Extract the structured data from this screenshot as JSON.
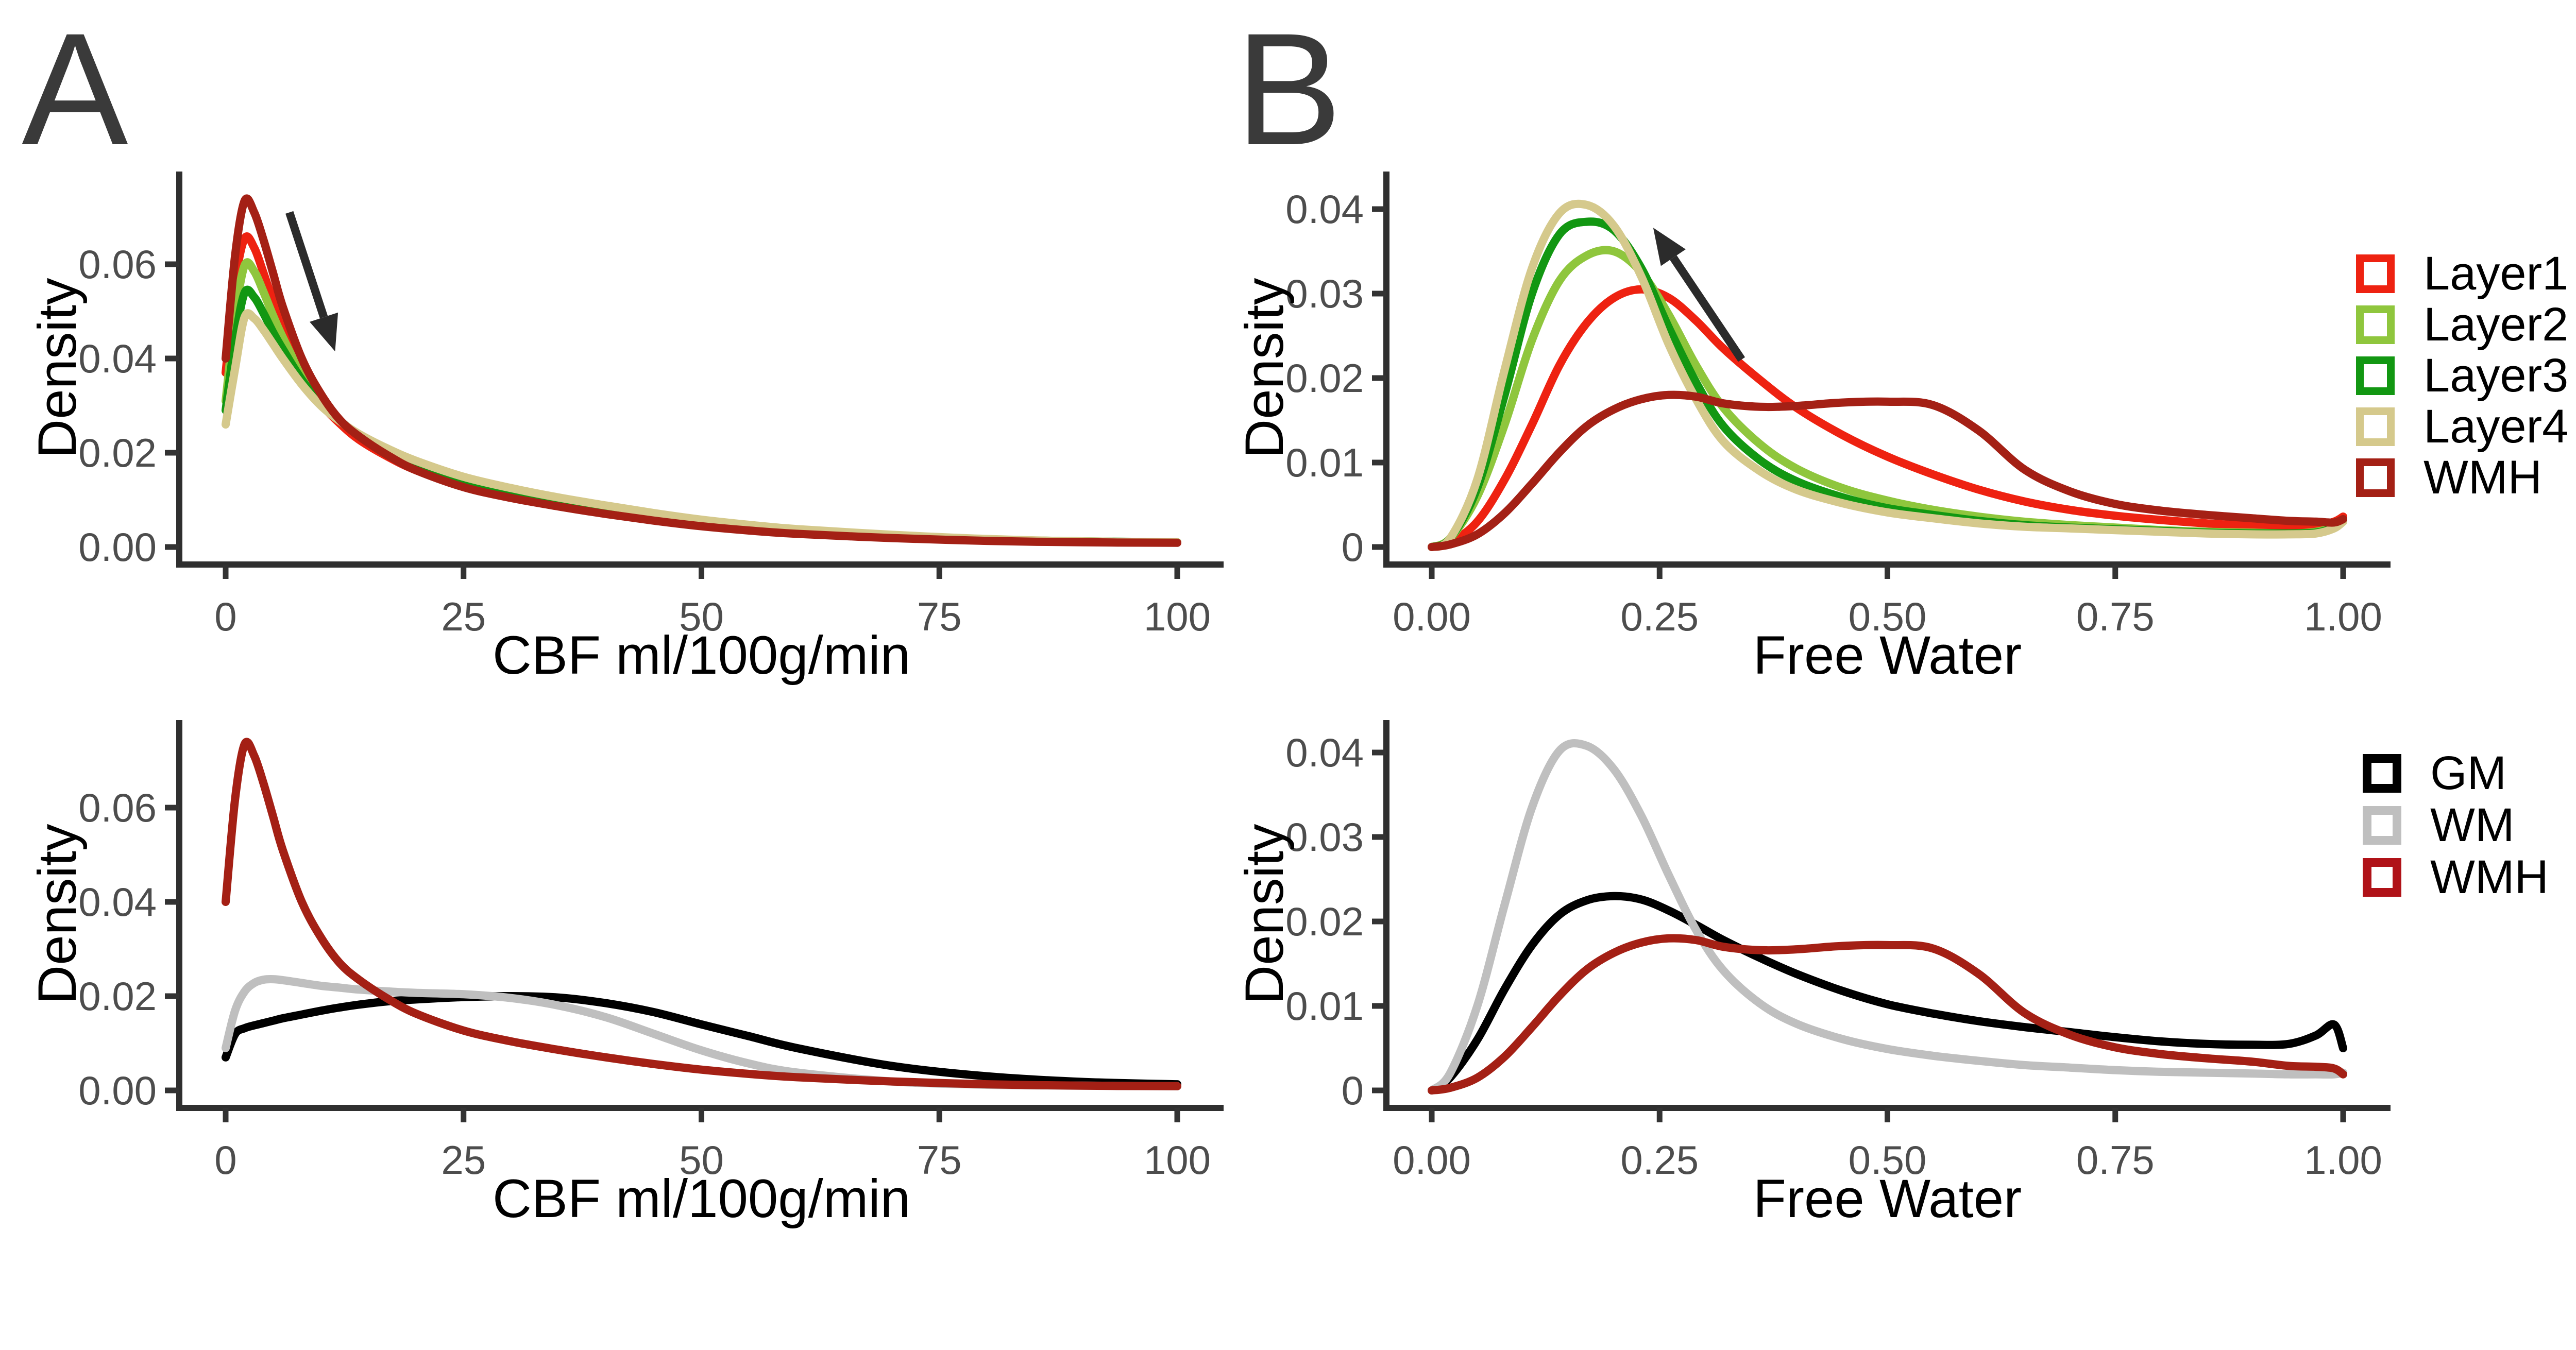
{
  "page": {
    "background": "#FFFFFF"
  },
  "panel_labels": [
    {
      "id": "A",
      "text": "A"
    },
    {
      "id": "B",
      "text": "B"
    }
  ],
  "colors": {
    "axis_line": "#2F2F2F",
    "tick": "#333333",
    "tick_label": "#4D4D4D",
    "axis_title": "#000000",
    "arrow": "#2B2B2B",
    "layer1": "#EE2211",
    "layer2": "#8FC63D",
    "layer3": "#129712",
    "layer4": "#D5C98C",
    "wmh": "#A42015",
    "gm": "#000000",
    "wm": "#BFBFBF"
  },
  "legends": [
    {
      "id": "layers",
      "items": [
        {
          "label": "Layer1",
          "color": "#EE2211"
        },
        {
          "label": "Layer2",
          "color": "#8FC63D"
        },
        {
          "label": "Layer3",
          "color": "#129712"
        },
        {
          "label": "Layer4",
          "color": "#D5C98C"
        },
        {
          "label": "WMH",
          "color": "#A42015"
        }
      ]
    },
    {
      "id": "tissues",
      "items": [
        {
          "label": "GM",
          "color": "#000000"
        },
        {
          "label": "WM",
          "color": "#BFBFBF"
        },
        {
          "label": "WMH",
          "color": "#B01218"
        }
      ]
    }
  ],
  "chart_data": [
    {
      "id": "cbf-layers",
      "panel": "A",
      "position": "top-left",
      "type": "line",
      "subtype": "density-kde",
      "xlabel": "CBF ml/100g/min",
      "ylabel": "Density",
      "xlim": [
        0,
        100
      ],
      "ylim": [
        0,
        0.0735
      ],
      "grid": false,
      "legend_position": "none",
      "xticks": [
        0,
        25,
        50,
        75,
        100
      ],
      "xtick_labels": [
        "0",
        "25",
        "50",
        "75",
        "100"
      ],
      "yticks": [
        0,
        0.02,
        0.04,
        0.06
      ],
      "ytick_labels": [
        "0.00",
        "0.02",
        "0.04",
        "0.06"
      ],
      "arrow": {
        "from": [
          6.7,
          0.071
        ],
        "to": [
          11.5,
          0.0415
        ],
        "meaning": "density peak decreases from WMH toward Layer4"
      },
      "x": [
        0,
        1,
        2,
        3,
        4,
        5,
        6,
        8,
        10,
        12,
        14,
        17,
        20,
        25,
        30,
        35,
        40,
        45,
        50,
        55,
        60,
        70,
        80,
        90,
        100
      ],
      "series": [
        {
          "name": "Layer1",
          "color": "#EE2211",
          "y": [
            0.037,
            0.056,
            0.0655,
            0.0635,
            0.058,
            0.052,
            0.046,
            0.037,
            0.0305,
            0.0262,
            0.0228,
            0.0192,
            0.0163,
            0.0128,
            0.0107,
            0.0089,
            0.0074,
            0.006,
            0.0048,
            0.0038,
            0.0031,
            0.0021,
            0.0014,
            0.0011,
            0.001
          ]
        },
        {
          "name": "Layer2",
          "color": "#8FC63D",
          "y": [
            0.031,
            0.049,
            0.0598,
            0.0585,
            0.054,
            0.049,
            0.0445,
            0.0365,
            0.0308,
            0.0268,
            0.0236,
            0.0201,
            0.0173,
            0.0138,
            0.0115,
            0.0096,
            0.008,
            0.0065,
            0.0052,
            0.0042,
            0.0034,
            0.0023,
            0.0015,
            0.0011,
            0.001
          ]
        },
        {
          "name": "Layer3",
          "color": "#129712",
          "y": [
            0.029,
            0.044,
            0.054,
            0.053,
            0.0495,
            0.0455,
            0.042,
            0.0355,
            0.0305,
            0.0268,
            0.0238,
            0.0205,
            0.0178,
            0.0143,
            0.012,
            0.01,
            0.0083,
            0.0068,
            0.0055,
            0.0044,
            0.0036,
            0.0024,
            0.0016,
            0.0012,
            0.001
          ]
        },
        {
          "name": "Layer4",
          "color": "#D5C98C",
          "y": [
            0.026,
            0.038,
            0.0488,
            0.0485,
            0.046,
            0.043,
            0.04,
            0.0345,
            0.03,
            0.0267,
            0.024,
            0.0209,
            0.0183,
            0.0149,
            0.0125,
            0.0105,
            0.0088,
            0.0072,
            0.0058,
            0.0047,
            0.0038,
            0.0026,
            0.0017,
            0.0012,
            0.001
          ]
        },
        {
          "name": "WMH",
          "color": "#A42015",
          "y": [
            0.04,
            0.062,
            0.0735,
            0.071,
            0.065,
            0.058,
            0.051,
            0.04,
            0.0325,
            0.027,
            0.0235,
            0.0195,
            0.0163,
            0.0127,
            0.0104,
            0.0086,
            0.007,
            0.0056,
            0.0044,
            0.0035,
            0.0028,
            0.0019,
            0.0013,
            0.001,
            0.0009
          ]
        }
      ]
    },
    {
      "id": "freewater-layers",
      "panel": "B",
      "position": "top-right",
      "type": "line",
      "subtype": "density-kde",
      "xlabel": "Free Water",
      "ylabel": "Density",
      "xlim": [
        0,
        1
      ],
      "ylim": [
        0,
        0.0405
      ],
      "grid": false,
      "legend_position": "right",
      "legend": "layers",
      "xticks": [
        0,
        0.25,
        0.5,
        0.75,
        1
      ],
      "xtick_labels": [
        "0.00",
        "0.25",
        "0.50",
        "0.75",
        "1.00"
      ],
      "yticks": [
        0,
        0.01,
        0.02,
        0.03,
        0.04
      ],
      "ytick_labels": [
        "0",
        "0.01",
        "0.02",
        "0.03",
        "0.04"
      ],
      "arrow": {
        "from": [
          0.34,
          0.0222
        ],
        "to": [
          0.243,
          0.0378
        ],
        "meaning": "density peak increases from Layer1 toward Layer4"
      },
      "x": [
        0,
        0.02,
        0.05,
        0.08,
        0.11,
        0.14,
        0.17,
        0.2,
        0.23,
        0.26,
        0.29,
        0.32,
        0.36,
        0.4,
        0.45,
        0.5,
        0.55,
        0.6,
        0.65,
        0.7,
        0.75,
        0.8,
        0.85,
        0.9,
        0.94,
        0.97,
        0.99,
        1
      ],
      "series": [
        {
          "name": "Layer1",
          "color": "#EE2211",
          "y": [
            0,
            0.0005,
            0.003,
            0.008,
            0.0145,
            0.0215,
            0.0265,
            0.0295,
            0.0305,
            0.0295,
            0.0268,
            0.0235,
            0.0198,
            0.0165,
            0.0133,
            0.0107,
            0.0086,
            0.0068,
            0.0054,
            0.0044,
            0.0037,
            0.0032,
            0.0028,
            0.0025,
            0.0024,
            0.0025,
            0.003,
            0.0036
          ]
        },
        {
          "name": "Layer2",
          "color": "#8FC63D",
          "y": [
            0,
            0.001,
            0.006,
            0.0145,
            0.0245,
            0.0315,
            0.0345,
            0.035,
            0.0325,
            0.0275,
            0.0215,
            0.0165,
            0.0122,
            0.0093,
            0.007,
            0.0055,
            0.0044,
            0.0036,
            0.003,
            0.0026,
            0.0023,
            0.002,
            0.0018,
            0.0017,
            0.0016,
            0.0018,
            0.0024,
            0.0032
          ]
        },
        {
          "name": "Layer3",
          "color": "#129712",
          "y": [
            0,
            0.001,
            0.007,
            0.018,
            0.03,
            0.037,
            0.0385,
            0.0375,
            0.033,
            0.026,
            0.0195,
            0.0143,
            0.0103,
            0.0078,
            0.0059,
            0.0046,
            0.0038,
            0.0031,
            0.0026,
            0.0023,
            0.0021,
            0.0019,
            0.0017,
            0.0016,
            0.0016,
            0.0017,
            0.0023,
            0.0031
          ]
        },
        {
          "name": "Layer4",
          "color": "#D5C98C",
          "y": [
            0,
            0.001,
            0.008,
            0.021,
            0.033,
            0.0395,
            0.0405,
            0.038,
            0.032,
            0.024,
            0.0175,
            0.0125,
            0.009,
            0.0068,
            0.0052,
            0.0041,
            0.0034,
            0.0028,
            0.0024,
            0.0022,
            0.002,
            0.0018,
            0.0016,
            0.0015,
            0.0015,
            0.0016,
            0.0022,
            0.003
          ]
        },
        {
          "name": "WMH",
          "color": "#A42015",
          "y": [
            0,
            0.0003,
            0.0015,
            0.004,
            0.0075,
            0.0112,
            0.0143,
            0.0163,
            0.0175,
            0.018,
            0.0178,
            0.017,
            0.0166,
            0.0167,
            0.0171,
            0.0172,
            0.0168,
            0.0138,
            0.0092,
            0.0066,
            0.0051,
            0.0043,
            0.0038,
            0.0034,
            0.0031,
            0.003,
            0.0029,
            0.0033
          ]
        }
      ]
    },
    {
      "id": "cbf-tissues",
      "panel": "A",
      "position": "bottom-left",
      "type": "line",
      "subtype": "density-kde",
      "xlabel": "CBF ml/100g/min",
      "ylabel": "Density",
      "xlim": [
        0,
        100
      ],
      "ylim": [
        0,
        0.0735
      ],
      "grid": false,
      "legend_position": "none",
      "xticks": [
        0,
        25,
        50,
        75,
        100
      ],
      "xtick_labels": [
        "0",
        "25",
        "50",
        "75",
        "100"
      ],
      "yticks": [
        0,
        0.02,
        0.04,
        0.06
      ],
      "ytick_labels": [
        "0.00",
        "0.02",
        "0.04",
        "0.06"
      ],
      "x": [
        0,
        1,
        2,
        3,
        4,
        5,
        6,
        8,
        10,
        12,
        14,
        17,
        20,
        25,
        30,
        35,
        40,
        45,
        50,
        55,
        60,
        70,
        80,
        90,
        100
      ],
      "series": [
        {
          "name": "GM",
          "color": "#000000",
          "y": [
            0.007,
            0.012,
            0.0132,
            0.0138,
            0.0143,
            0.0148,
            0.0153,
            0.0161,
            0.0169,
            0.0176,
            0.0182,
            0.0189,
            0.0193,
            0.0198,
            0.02,
            0.0197,
            0.0185,
            0.0166,
            0.014,
            0.0115,
            0.009,
            0.0052,
            0.003,
            0.0018,
            0.0013
          ]
        },
        {
          "name": "WM",
          "color": "#BFBFBF",
          "y": [
            0.009,
            0.017,
            0.021,
            0.0228,
            0.0235,
            0.0236,
            0.0234,
            0.0228,
            0.0222,
            0.0218,
            0.0214,
            0.021,
            0.0207,
            0.0204,
            0.0196,
            0.018,
            0.0155,
            0.012,
            0.0085,
            0.0057,
            0.0038,
            0.0019,
            0.0012,
            0.001,
            0.0009
          ]
        },
        {
          "name": "WMH",
          "color": "#A42015",
          "y": [
            0.04,
            0.062,
            0.0735,
            0.071,
            0.065,
            0.058,
            0.051,
            0.04,
            0.0325,
            0.027,
            0.0235,
            0.0195,
            0.0163,
            0.0127,
            0.0104,
            0.0086,
            0.007,
            0.0056,
            0.0044,
            0.0035,
            0.0028,
            0.0019,
            0.0013,
            0.001,
            0.0009
          ]
        }
      ]
    },
    {
      "id": "freewater-tissues",
      "panel": "B",
      "position": "bottom-right",
      "type": "line",
      "subtype": "density-kde",
      "xlabel": "Free Water",
      "ylabel": "Density",
      "xlim": [
        0,
        1
      ],
      "ylim": [
        0,
        0.041
      ],
      "grid": false,
      "legend_position": "right",
      "legend": "tissues",
      "xticks": [
        0,
        0.25,
        0.5,
        0.75,
        1
      ],
      "xtick_labels": [
        "0.00",
        "0.25",
        "0.50",
        "0.75",
        "1.00"
      ],
      "yticks": [
        0,
        0.01,
        0.02,
        0.03,
        0.04
      ],
      "ytick_labels": [
        "0",
        "0.01",
        "0.02",
        "0.03",
        "0.04"
      ],
      "x": [
        0,
        0.02,
        0.05,
        0.08,
        0.11,
        0.14,
        0.17,
        0.2,
        0.23,
        0.26,
        0.29,
        0.32,
        0.36,
        0.4,
        0.45,
        0.5,
        0.55,
        0.6,
        0.65,
        0.7,
        0.75,
        0.8,
        0.85,
        0.9,
        0.94,
        0.97,
        0.99,
        1
      ],
      "series": [
        {
          "name": "GM",
          "color": "#000000",
          "y": [
            0,
            0.0015,
            0.006,
            0.012,
            0.0172,
            0.0208,
            0.0225,
            0.023,
            0.0226,
            0.0213,
            0.0196,
            0.0178,
            0.0157,
            0.0138,
            0.0118,
            0.0102,
            0.0091,
            0.0082,
            0.0075,
            0.0069,
            0.0063,
            0.0058,
            0.0055,
            0.0054,
            0.0055,
            0.0065,
            0.0078,
            0.005
          ]
        },
        {
          "name": "WM",
          "color": "#BFBFBF",
          "y": [
            0,
            0.002,
            0.01,
            0.022,
            0.0335,
            0.0402,
            0.0408,
            0.038,
            0.0325,
            0.0255,
            0.019,
            0.0142,
            0.0103,
            0.0079,
            0.0061,
            0.0049,
            0.0041,
            0.0035,
            0.003,
            0.0027,
            0.0024,
            0.0022,
            0.0021,
            0.002,
            0.0019,
            0.0019,
            0.0019,
            0.0021
          ]
        },
        {
          "name": "WMH",
          "color": "#A42015",
          "y": [
            0,
            0.0003,
            0.0015,
            0.004,
            0.0075,
            0.0112,
            0.0143,
            0.0163,
            0.0175,
            0.018,
            0.0178,
            0.017,
            0.0166,
            0.0167,
            0.0171,
            0.0172,
            0.0168,
            0.0138,
            0.0092,
            0.0066,
            0.0051,
            0.0043,
            0.0038,
            0.0034,
            0.0029,
            0.0028,
            0.0026,
            0.0019
          ]
        }
      ]
    }
  ]
}
